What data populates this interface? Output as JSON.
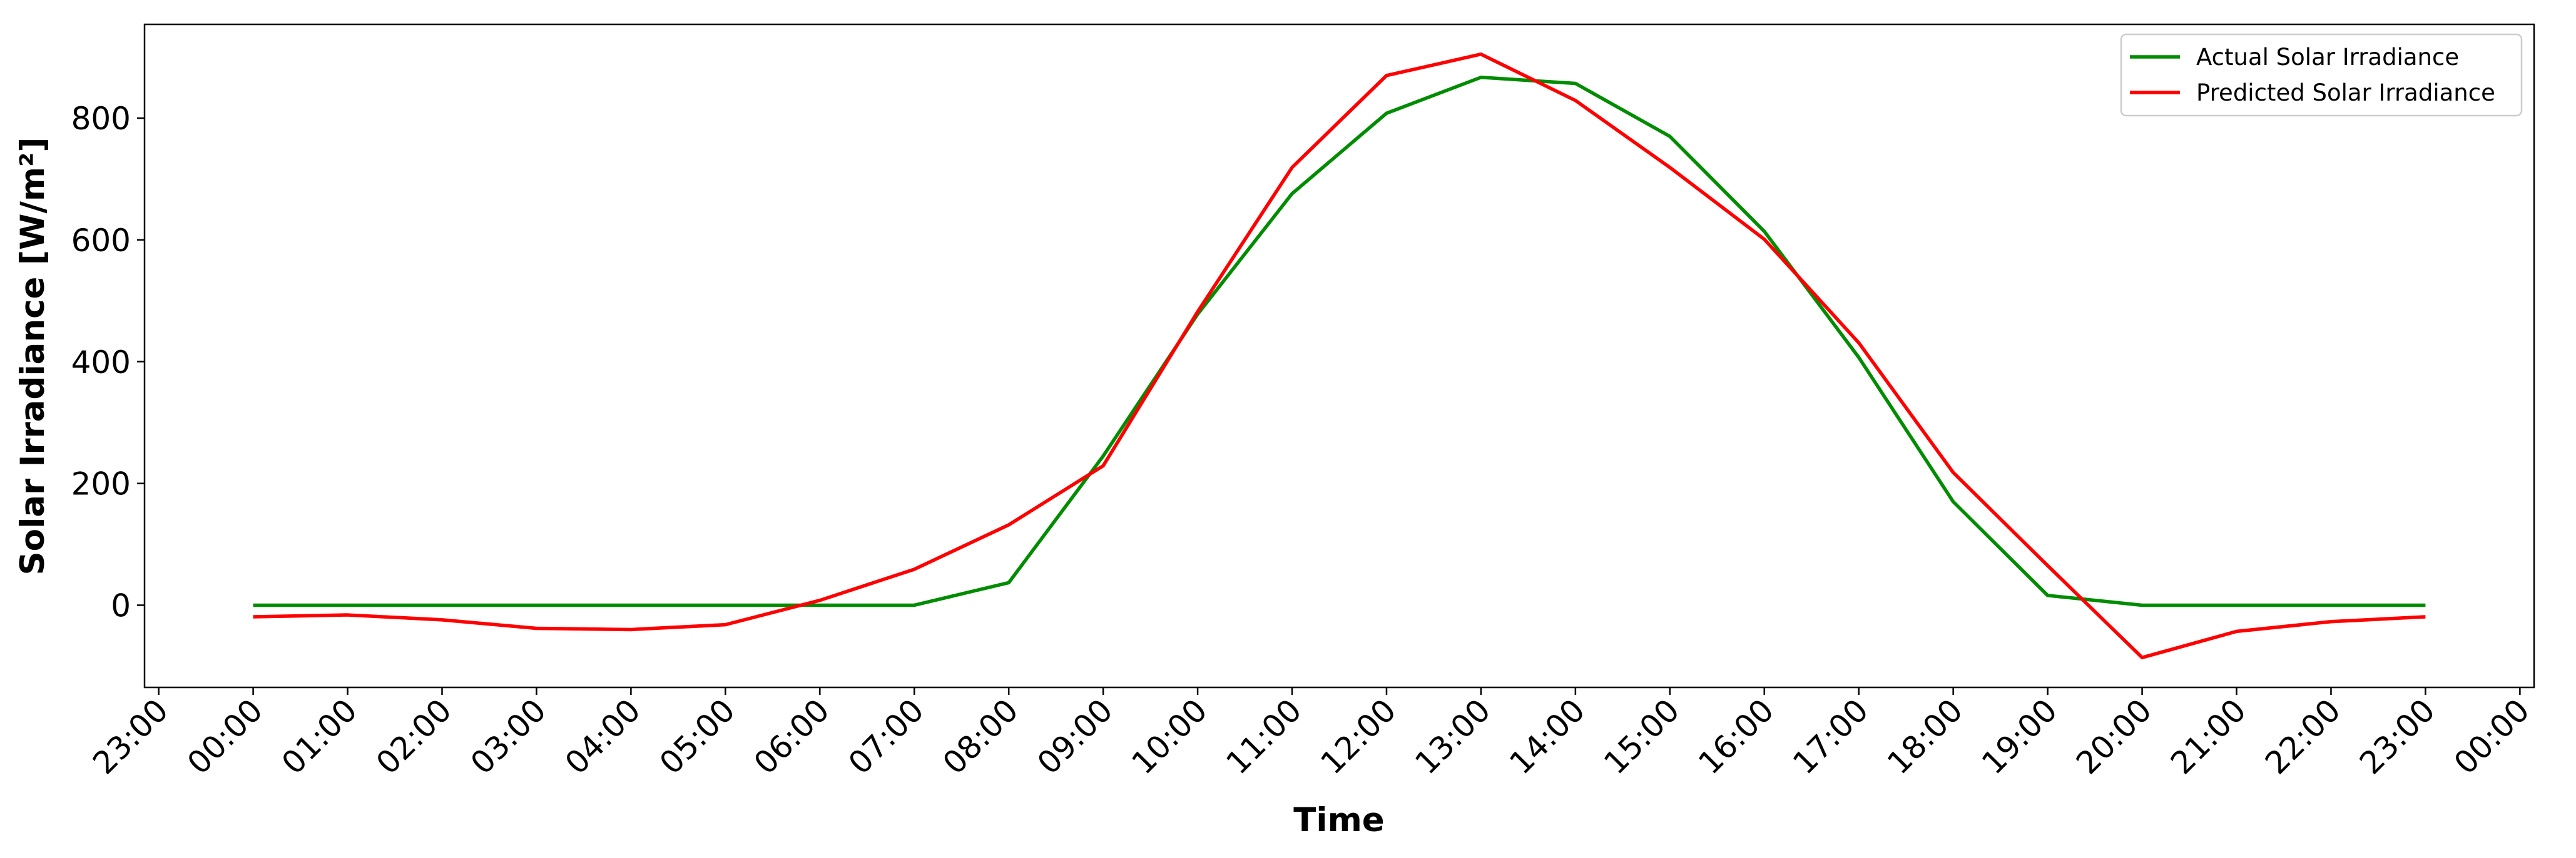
{
  "chart_data": {
    "type": "line",
    "xlabel": "Time",
    "ylabel": "Solar Irradiance [W/m²]",
    "x": [
      0,
      1,
      2,
      3,
      4,
      5,
      6,
      7,
      8,
      9,
      10,
      11,
      12,
      13,
      14,
      15,
      16,
      17,
      18,
      19,
      20,
      21,
      22,
      23
    ],
    "series": [
      {
        "name": "Actual Solar Irradiance",
        "color": "#008c00",
        "values": [
          0,
          0,
          0,
          0,
          0,
          0,
          0,
          0,
          37,
          245,
          478,
          676,
          808,
          867,
          857,
          770,
          614,
          407,
          170,
          16,
          0,
          0,
          0,
          0
        ]
      },
      {
        "name": "Predicted Solar Irradiance",
        "color": "#ff0000",
        "values": [
          -19,
          -16,
          -24,
          -38,
          -40,
          -32,
          8,
          59,
          132,
          229,
          482,
          719,
          870,
          905,
          829,
          719,
          601,
          431,
          218,
          65,
          -86,
          -43,
          -27,
          -19
        ]
      }
    ],
    "xlim": [
      -1.15,
      24.15
    ],
    "xticks": [
      {
        "value": -1,
        "label": "23:00"
      },
      {
        "value": 0,
        "label": "00:00"
      },
      {
        "value": 1,
        "label": "01:00"
      },
      {
        "value": 2,
        "label": "02:00"
      },
      {
        "value": 3,
        "label": "03:00"
      },
      {
        "value": 4,
        "label": "04:00"
      },
      {
        "value": 5,
        "label": "05:00"
      },
      {
        "value": 6,
        "label": "06:00"
      },
      {
        "value": 7,
        "label": "07:00"
      },
      {
        "value": 8,
        "label": "08:00"
      },
      {
        "value": 9,
        "label": "09:00"
      },
      {
        "value": 10,
        "label": "10:00"
      },
      {
        "value": 11,
        "label": "11:00"
      },
      {
        "value": 12,
        "label": "12:00"
      },
      {
        "value": 13,
        "label": "13:00"
      },
      {
        "value": 14,
        "label": "14:00"
      },
      {
        "value": 15,
        "label": "15:00"
      },
      {
        "value": 16,
        "label": "16:00"
      },
      {
        "value": 17,
        "label": "17:00"
      },
      {
        "value": 18,
        "label": "18:00"
      },
      {
        "value": 19,
        "label": "19:00"
      },
      {
        "value": 20,
        "label": "20:00"
      },
      {
        "value": 21,
        "label": "21:00"
      },
      {
        "value": 22,
        "label": "22:00"
      },
      {
        "value": 23,
        "label": "23:00"
      },
      {
        "value": 24,
        "label": "00:00"
      }
    ],
    "ylim": [
      -135,
      954
    ],
    "yticks": [
      0,
      200,
      400,
      600,
      800
    ],
    "legend": "upper right"
  }
}
